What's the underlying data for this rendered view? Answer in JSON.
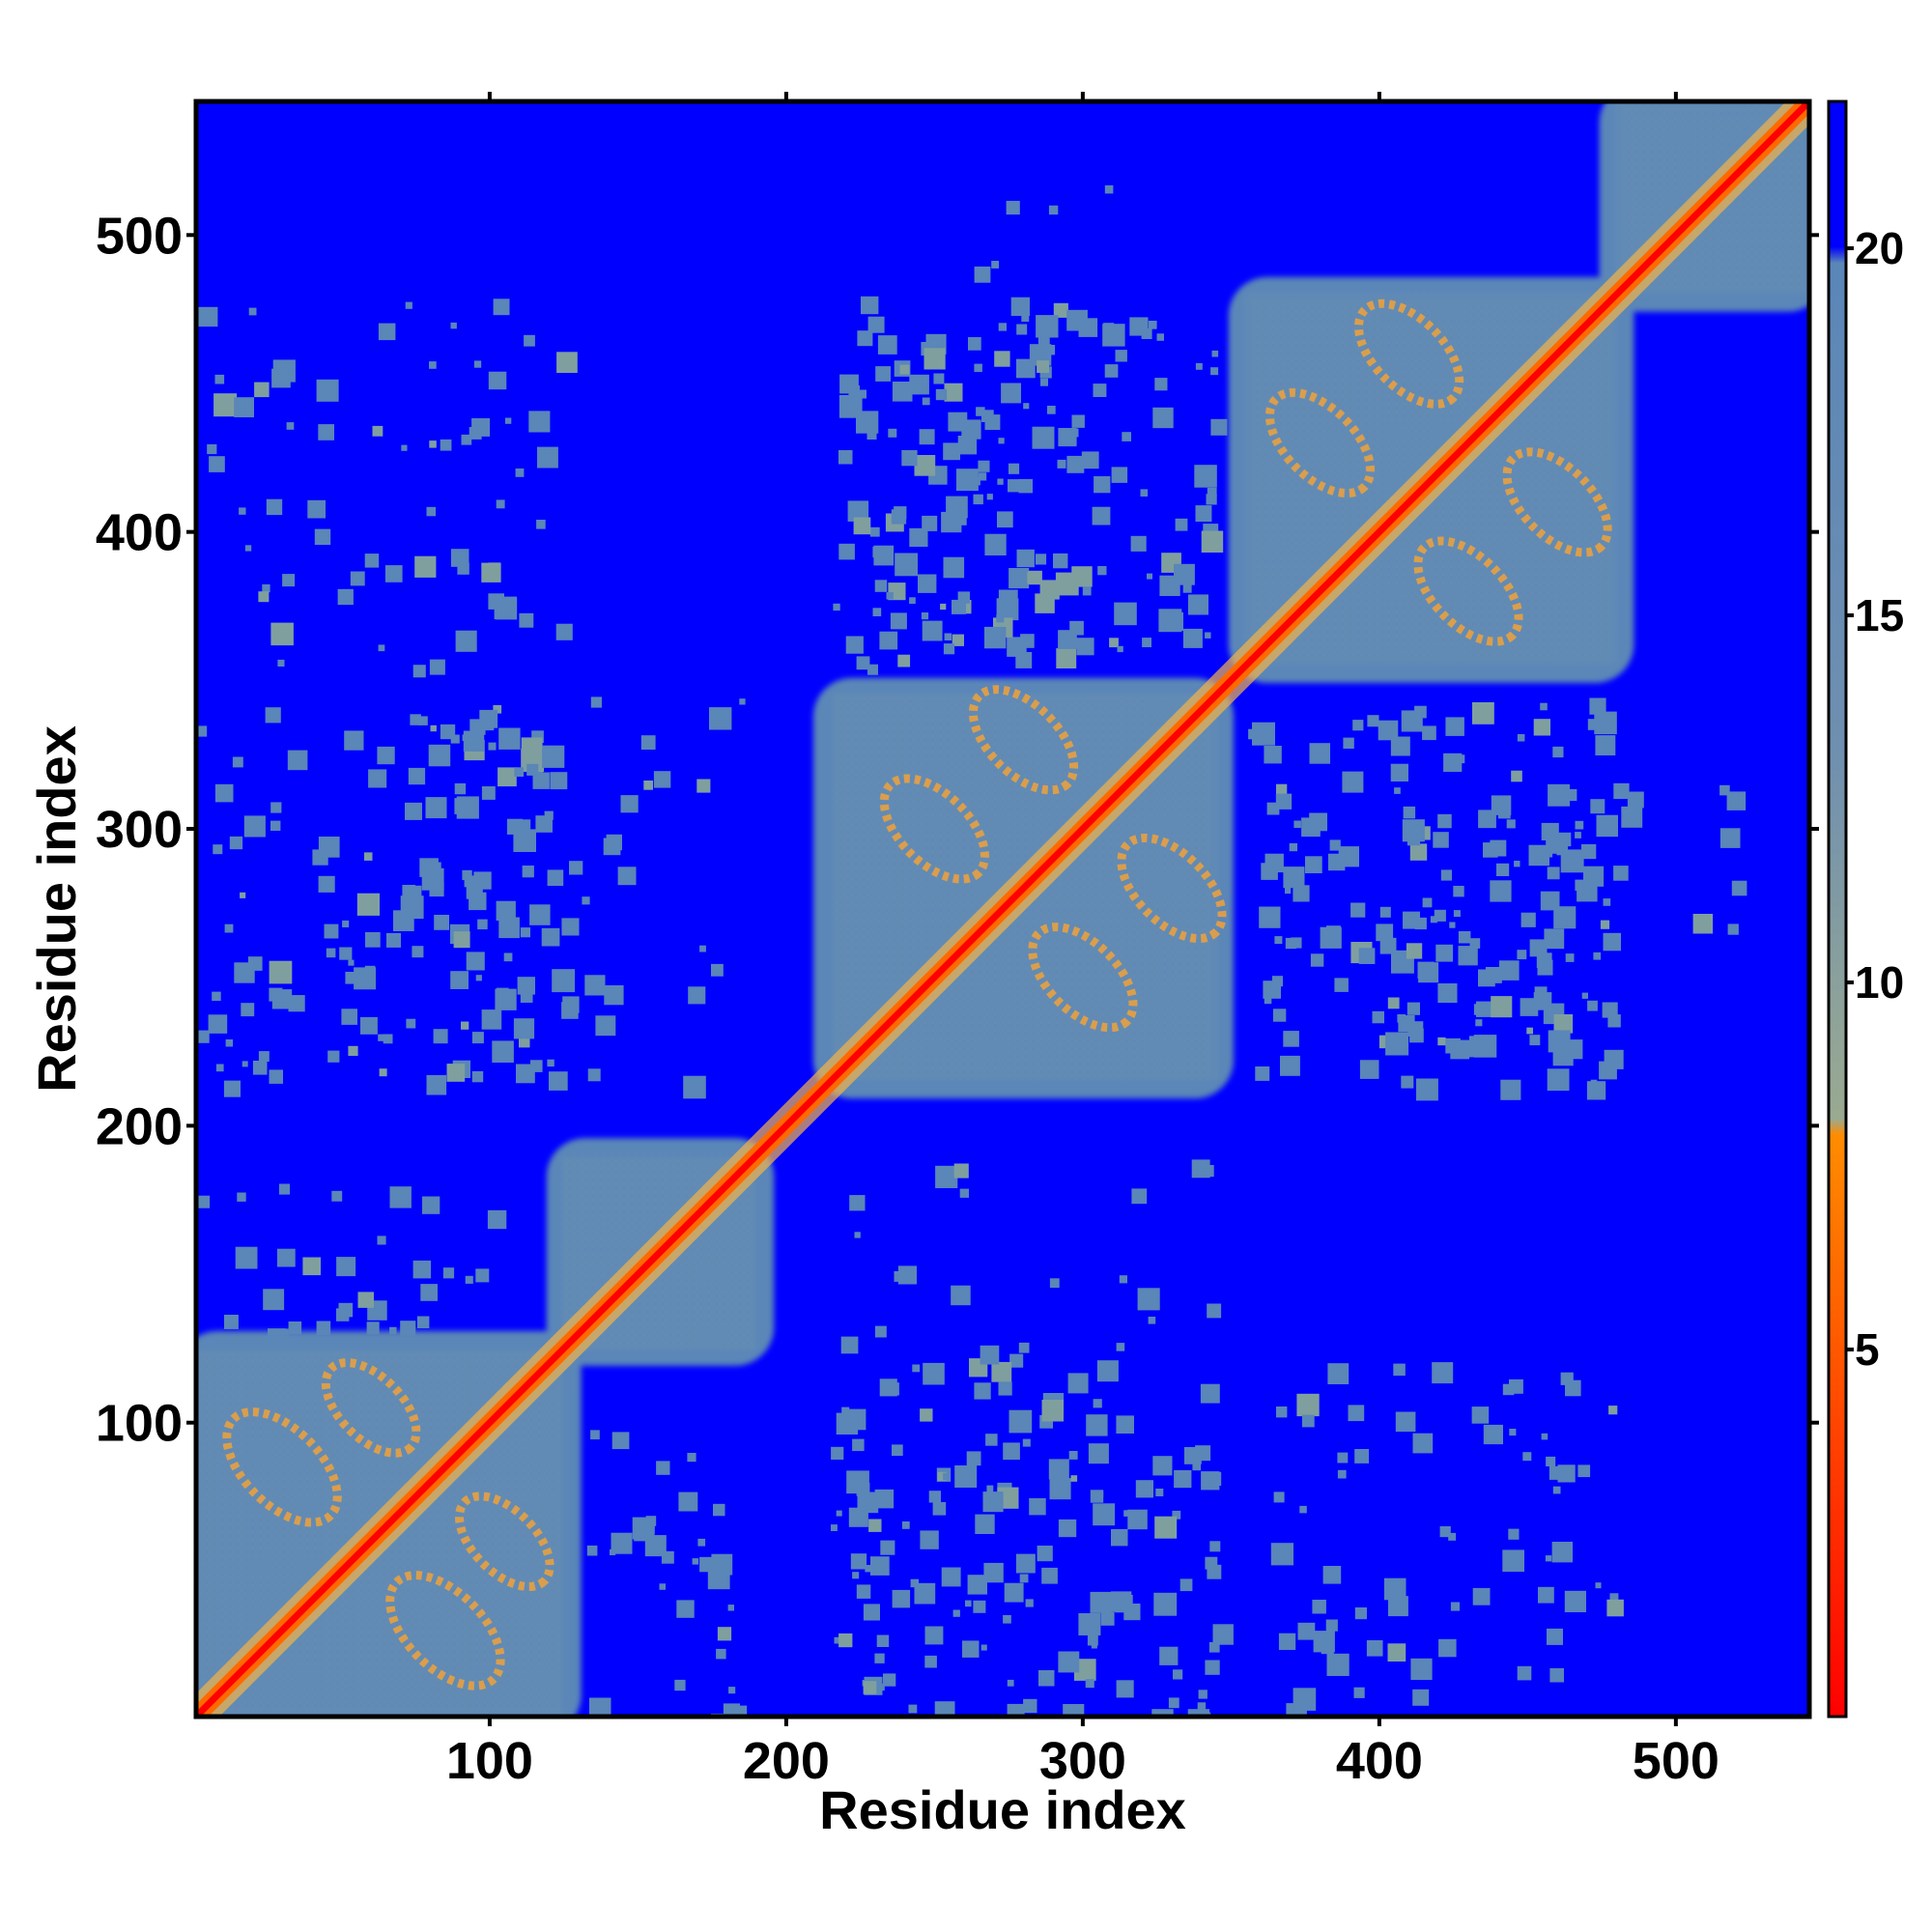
{
  "chart_data": {
    "type": "heatmap",
    "title": "",
    "xlabel": "Residue index",
    "ylabel": "Residue index",
    "xlim": [
      1,
      545
    ],
    "ylim": [
      1,
      545
    ],
    "xticks": [
      100,
      200,
      300,
      400,
      500
    ],
    "yticks": [
      100,
      200,
      300,
      400,
      500
    ],
    "colorbar": {
      "ticks": [
        5,
        10,
        15,
        20
      ],
      "range": [
        0,
        22
      ],
      "colors": [
        "#ff0000",
        "#ff8c00",
        "#7f9f9f",
        "#5a86b8",
        "#0000ff"
      ]
    },
    "background_value": "far (>20)",
    "domains": [
      {
        "start": 1,
        "end": 125
      },
      {
        "start": 125,
        "end": 190
      },
      {
        "start": 215,
        "end": 345
      },
      {
        "start": 355,
        "end": 480
      },
      {
        "start": 480,
        "end": 545
      }
    ],
    "helix_pairs": [
      {
        "a": 30,
        "b": 85
      },
      {
        "a": 60,
        "b": 105
      },
      {
        "a": 250,
        "b": 300
      },
      {
        "a": 280,
        "b": 330
      },
      {
        "a": 380,
        "b": 430
      },
      {
        "a": 410,
        "b": 460
      }
    ]
  }
}
